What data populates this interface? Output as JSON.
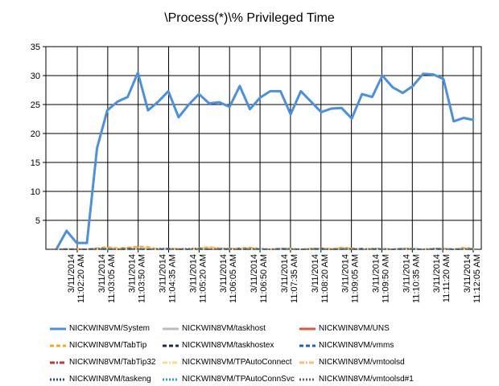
{
  "chart_data": {
    "type": "line",
    "title": "\\Process(*)\\% Privileged Time",
    "xlabel": "",
    "ylabel": "",
    "ylim": [
      0,
      35
    ],
    "yticks": [
      5,
      10,
      15,
      20,
      25,
      30,
      35
    ],
    "grid": true,
    "legend_position": "bottom",
    "x_tick_labels": [
      {
        "date": "3/11/2014",
        "time": "11:02:20 AM"
      },
      {
        "date": "3/11/2014",
        "time": "11:03:05 AM"
      },
      {
        "date": "3/11/2014",
        "time": "11:03:50 AM"
      },
      {
        "date": "3/11/2014",
        "time": "11:04:35 AM"
      },
      {
        "date": "3/11/2014",
        "time": "11:05:20 AM"
      },
      {
        "date": "3/11/2014",
        "time": "11:06:05 AM"
      },
      {
        "date": "3/11/2014",
        "time": "11:06:50 AM"
      },
      {
        "date": "3/11/2014",
        "time": "11:07:35 AM"
      },
      {
        "date": "3/11/2014",
        "time": "11:08:20 AM"
      },
      {
        "date": "3/11/2014",
        "time": "11:09:05 AM"
      },
      {
        "date": "3/11/2014",
        "time": "11:09:50 AM"
      },
      {
        "date": "3/11/2014",
        "time": "11:10:35 AM"
      },
      {
        "date": "3/11/2014",
        "time": "11:11:20 AM"
      },
      {
        "date": "3/11/2014",
        "time": "11:12:05 AM"
      }
    ],
    "series": [
      {
        "name": "NICKWIN8VM/System",
        "color": "#4a90e2",
        "style": "solid",
        "values": [
          0,
          3.2,
          1.1,
          1.1,
          17.5,
          24,
          25.5,
          26.3,
          30.5,
          24,
          25.5,
          27.3,
          22.8,
          25,
          26.8,
          25.2,
          25.4,
          24.6,
          28.2,
          24.2,
          26.2,
          27.3,
          27.3,
          23.3,
          27.3,
          25.5,
          23.7,
          24.3,
          24.4,
          22.6,
          26.8,
          26.3,
          30,
          28,
          27,
          28.2,
          30.3,
          30.2,
          29.4,
          22.1,
          22.7,
          22.3
        ]
      },
      {
        "name": "NICKWIN8VM/taskhost",
        "color": "#bdbdbd",
        "style": "solid",
        "values": [
          0,
          0.1,
          0,
          0,
          0.1,
          0.2,
          0.1,
          0.1,
          0.2,
          0.1,
          0,
          0.1,
          0.1,
          0,
          0.1,
          0.2,
          0.1,
          0,
          0.1,
          0.2,
          0.1,
          0,
          0.1,
          0.1,
          0,
          0.1,
          0.1,
          0,
          0.2,
          0.1,
          0,
          0.1,
          0.1,
          0,
          0.1,
          0.1,
          0,
          0.1,
          0.1,
          0,
          0.1,
          0
        ]
      },
      {
        "name": "NICKWIN8VM/UNS",
        "color": "#d9573b",
        "style": "solid",
        "values": [
          0,
          0,
          0,
          0,
          0,
          0,
          0,
          0,
          0,
          0,
          0,
          0,
          0,
          0,
          0,
          0,
          0,
          0,
          0,
          0,
          0,
          0,
          0,
          0,
          0,
          0,
          0,
          0,
          0,
          0,
          0,
          0,
          0,
          0,
          0,
          0,
          0,
          0,
          0,
          0,
          0,
          0
        ]
      },
      {
        "name": "NICKWIN8VM/TabTip",
        "color": "#f5a623",
        "style": "dashed",
        "values": [
          0,
          0,
          0.1,
          0,
          0.2,
          0.4,
          0.2,
          0.3,
          0.5,
          0.4,
          0,
          0.1,
          0.1,
          0,
          0.2,
          0.4,
          0.2,
          0.1,
          0.2,
          0.3,
          0.1,
          0,
          0.1,
          0.1,
          0,
          0.1,
          0.2,
          0.1,
          0.3,
          0.2,
          0,
          0.1,
          0.1,
          0,
          0.1,
          0.1,
          0,
          0.1,
          0.1,
          0,
          0.3,
          0.1
        ]
      },
      {
        "name": "NICKWIN8VM/taskhostex",
        "color": "#1f2d4a",
        "style": "dashed",
        "values": [
          0,
          0,
          0,
          0,
          0.1,
          0,
          0,
          0.1,
          0,
          0,
          0,
          0.1,
          0,
          0,
          0.1,
          0,
          0,
          0,
          0.1,
          0,
          0,
          0,
          0.1,
          0,
          0,
          0,
          0.1,
          0,
          0,
          0,
          0.1,
          0,
          0,
          0,
          0.1,
          0,
          0,
          0,
          0.1,
          0,
          0,
          0
        ]
      },
      {
        "name": "NICKWIN8VM/vmms",
        "color": "#1f5fbf",
        "style": "dashed",
        "values": [
          0,
          0,
          0,
          0,
          0,
          0,
          0,
          0,
          0,
          0,
          0,
          0,
          0,
          0,
          0,
          0,
          0,
          0,
          0,
          0,
          0,
          0,
          0,
          0,
          0,
          0,
          0,
          0,
          0,
          0,
          0,
          0,
          0,
          0,
          0,
          0,
          0,
          0,
          0,
          0,
          0,
          0
        ]
      },
      {
        "name": "NICKWIN8VM/TabTip32",
        "color": "#c0392b",
        "style": "dashdot",
        "values": [
          0,
          0,
          0,
          0,
          0,
          0,
          0,
          0,
          0,
          0,
          0,
          0,
          0,
          0,
          0,
          0,
          0,
          0,
          0,
          0,
          0,
          0,
          0,
          0,
          0,
          0,
          0,
          0,
          0,
          0,
          0,
          0,
          0,
          0,
          0,
          0,
          0,
          0,
          0,
          0,
          0,
          0
        ]
      },
      {
        "name": "NICKWIN8VM/TPAutoConnect",
        "color": "#f7e17a",
        "style": "dashdot",
        "values": [
          0,
          0,
          0,
          0,
          0,
          0.1,
          0,
          0,
          0,
          0,
          0,
          0,
          0,
          0,
          0,
          0.1,
          0,
          0,
          0,
          0,
          0,
          0,
          0,
          0,
          0,
          0,
          0,
          0,
          0.1,
          0,
          0,
          0,
          0,
          0,
          0,
          0,
          0,
          0,
          0,
          0,
          0,
          0
        ]
      },
      {
        "name": "NICKWIN8VM/vmtoolsd",
        "color": "#f5c16c",
        "style": "dashdot",
        "values": [
          0,
          0,
          0,
          0,
          0.1,
          0.2,
          0.1,
          0.2,
          0.3,
          0.2,
          0.1,
          0.1,
          0.1,
          0.1,
          0.2,
          0.3,
          0.2,
          0.1,
          0.1,
          0.2,
          0.1,
          0,
          0.1,
          0.1,
          0,
          0.1,
          0.1,
          0.1,
          0.2,
          0.1,
          0,
          0.1,
          0.1,
          0,
          0.1,
          0.1,
          0,
          0.1,
          0.1,
          0,
          0.2,
          0.1
        ]
      },
      {
        "name": "NICKWIN8VM/taskeng",
        "color": "#1e4f7a",
        "style": "dotted",
        "values": [
          0,
          0,
          0,
          0,
          0,
          0,
          0,
          0,
          0,
          0,
          0,
          0,
          0,
          0,
          0,
          0,
          0,
          0,
          0,
          0,
          0,
          0,
          0,
          0,
          0,
          0,
          0,
          0,
          0,
          0,
          0,
          0,
          0,
          0,
          0,
          0,
          0,
          0,
          0,
          0,
          0,
          0
        ]
      },
      {
        "name": "NICKWIN8VM/TPAutoConnSvc",
        "color": "#27a3c4",
        "style": "dotted",
        "values": [
          0,
          0,
          0,
          0,
          0,
          0,
          0,
          0,
          0,
          0,
          0,
          0,
          0,
          0,
          0,
          0,
          0,
          0,
          0,
          0,
          0,
          0,
          0,
          0,
          0,
          0,
          0,
          0,
          0,
          0,
          0,
          0,
          0,
          0,
          0,
          0,
          0,
          0,
          0,
          0,
          0,
          0
        ]
      },
      {
        "name": "NICKWIN8VM/vmtoolsd#1",
        "color": "#5a6270",
        "style": "dotted",
        "values": [
          0,
          0,
          0,
          0,
          0.1,
          0.1,
          0,
          0.1,
          0.1,
          0,
          0.1,
          0.1,
          0,
          0.1,
          0.1,
          0,
          0.1,
          0.1,
          0,
          0.1,
          0.1,
          0,
          0.1,
          0.1,
          0,
          0.1,
          0.1,
          0,
          0.1,
          0.1,
          0,
          0.1,
          0.1,
          0,
          0.1,
          0.1,
          0,
          0.1,
          0.1,
          0,
          0.1,
          0.1
        ]
      }
    ]
  }
}
